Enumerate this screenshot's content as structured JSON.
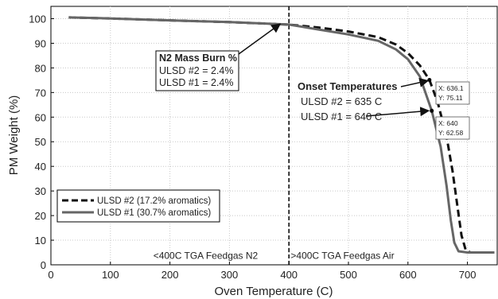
{
  "chart_data": {
    "type": "line",
    "title": "",
    "xlabel": "Oven Temperature (C)",
    "ylabel": "PM Weight (%)",
    "xlim": [
      0,
      750
    ],
    "ylim": [
      0,
      105
    ],
    "xticks": [
      0,
      100,
      200,
      300,
      400,
      500,
      600,
      700
    ],
    "yticks": [
      0,
      10,
      20,
      30,
      40,
      50,
      60,
      70,
      80,
      90,
      100
    ],
    "grid": true,
    "legend_position": "bottom-left",
    "series": [
      {
        "name": "ULSD #2 (17.2% aromatics)",
        "line_style": "dashed",
        "color": "#111111",
        "points": [
          [
            30,
            100.5
          ],
          [
            100,
            100.1
          ],
          [
            200,
            99.3
          ],
          [
            300,
            98.6
          ],
          [
            400,
            97.6
          ],
          [
            450,
            96.4
          ],
          [
            500,
            94.8
          ],
          [
            550,
            92.5
          ],
          [
            580,
            89.5
          ],
          [
            600,
            86
          ],
          [
            620,
            81
          ],
          [
            636.1,
            75.11
          ],
          [
            650,
            66
          ],
          [
            665,
            52
          ],
          [
            675,
            38
          ],
          [
            683,
            24
          ],
          [
            690,
            12
          ],
          [
            697,
            6
          ],
          [
            705,
            5
          ],
          [
            720,
            5
          ],
          [
            745,
            5
          ]
        ]
      },
      {
        "name": "ULSD #1 (30.7% aromatics)",
        "line_style": "solid",
        "color": "#666666",
        "points": [
          [
            30,
            100.5
          ],
          [
            100,
            100.1
          ],
          [
            200,
            99.3
          ],
          [
            300,
            98.6
          ],
          [
            400,
            97.6
          ],
          [
            450,
            95.6
          ],
          [
            500,
            93.6
          ],
          [
            550,
            91
          ],
          [
            580,
            87.5
          ],
          [
            600,
            83.5
          ],
          [
            620,
            76.5
          ],
          [
            640,
            62.58
          ],
          [
            655,
            48
          ],
          [
            665,
            32
          ],
          [
            672,
            18
          ],
          [
            678,
            9
          ],
          [
            685,
            5.5
          ],
          [
            700,
            5
          ],
          [
            720,
            5
          ],
          [
            745,
            5
          ]
        ]
      }
    ],
    "vline": {
      "x": 400
    },
    "region_labels": [
      {
        "text": "<400C TGA Feedgas N2",
        "x": 260,
        "y": 4
      },
      {
        "text": ">400C TGA Feedgas Air",
        "x": 490,
        "y": 4
      }
    ],
    "annotations": {
      "mass_burn": {
        "title": "N2 Mass Burn %",
        "lines": [
          "ULSD #2 = 2.4%",
          "ULSD #1 = 2.4%"
        ],
        "target": [
          385,
          97.8
        ]
      },
      "onset": {
        "title": "Onset Temperatures",
        "lines": [
          "ULSD #2 = 635 C",
          "ULSD #1 = 640 C"
        ],
        "target2": [
          636.1,
          75.11
        ],
        "target1": [
          640,
          62.58
        ]
      },
      "datatips": [
        {
          "x_text": "X: 636.1",
          "y_text": "Y: 75.11",
          "x": 636.1,
          "y": 75.11
        },
        {
          "x_text": "X: 640",
          "y_text": "Y: 62.58",
          "x": 640,
          "y": 62.58
        }
      ]
    }
  }
}
